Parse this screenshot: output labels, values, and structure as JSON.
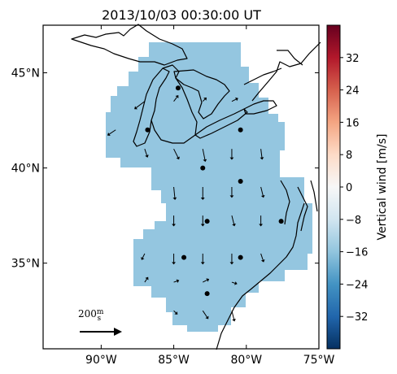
{
  "title": "2013/10/03 00:30:00 UT",
  "map": {
    "x_ticks": [
      {
        "lon": -90,
        "label": "90°W"
      },
      {
        "lon": -85,
        "label": "85°W"
      },
      {
        "lon": -80,
        "label": "80°W"
      },
      {
        "lon": -75,
        "label": "75°W"
      }
    ],
    "y_ticks": [
      {
        "lat": 45,
        "label": "45°N"
      },
      {
        "lat": 40,
        "label": "40°N"
      },
      {
        "lat": 35,
        "label": "35°N"
      }
    ],
    "reference_arrow_label": "200 m/s",
    "field_color": "#94c6e0"
  },
  "colorbar": {
    "label": "Vertical wind [m/s]",
    "range": [
      -40,
      40
    ],
    "ticks": [
      32,
      24,
      16,
      8,
      0,
      -8,
      -16,
      -24,
      -32
    ],
    "tick_labels": [
      "32",
      "24",
      "16",
      "8",
      "0",
      "−8",
      "−16",
      "−24",
      "−32"
    ],
    "colors_top_to_bottom": [
      "#67001f",
      "#b2182b",
      "#d6604d",
      "#f4a582",
      "#fddbc7",
      "#f7f7f7",
      "#d1e5f0",
      "#92c5de",
      "#4393c3",
      "#2166ac",
      "#053061"
    ]
  },
  "chart_data": {
    "type": "map",
    "title": "2013/10/03 00:30:00 UT",
    "xlim": [
      -94,
      -75
    ],
    "ylim": [
      30.5,
      47.5
    ],
    "stations": [
      {
        "lon": -86.8,
        "lat": 42.0
      },
      {
        "lon": -84.7,
        "lat": 44.2
      },
      {
        "lon": -80.4,
        "lat": 42.0
      },
      {
        "lon": -83.0,
        "lat": 40.0
      },
      {
        "lon": -80.4,
        "lat": 39.3
      },
      {
        "lon": -82.7,
        "lat": 37.2
      },
      {
        "lon": -77.6,
        "lat": 37.2
      },
      {
        "lon": -84.3,
        "lat": 35.3
      },
      {
        "lon": -80.4,
        "lat": 35.3
      },
      {
        "lon": -82.7,
        "lat": 33.4
      }
    ],
    "wind_vectors_m_per_s": [
      {
        "lon": -87.0,
        "lat": 43.5,
        "u": -40,
        "v": -30
      },
      {
        "lon": -85.0,
        "lat": 43.5,
        "u": 15,
        "v": 20
      },
      {
        "lon": -83.0,
        "lat": 43.5,
        "u": 10,
        "v": 10
      },
      {
        "lon": -81.0,
        "lat": 43.5,
        "u": 20,
        "v": 10
      },
      {
        "lon": -89.0,
        "lat": 42.0,
        "u": -30,
        "v": -20
      },
      {
        "lon": -87.0,
        "lat": 41.0,
        "u": 10,
        "v": -30
      },
      {
        "lon": -85.0,
        "lat": 41.0,
        "u": 20,
        "v": -40
      },
      {
        "lon": -83.0,
        "lat": 41.0,
        "u": 10,
        "v": -50
      },
      {
        "lon": -81.0,
        "lat": 41.0,
        "u": 0,
        "v": -40
      },
      {
        "lon": -79.0,
        "lat": 41.0,
        "u": 5,
        "v": -40
      },
      {
        "lon": -85.0,
        "lat": 39.0,
        "u": 5,
        "v": -50
      },
      {
        "lon": -83.0,
        "lat": 39.0,
        "u": 0,
        "v": -50
      },
      {
        "lon": -81.0,
        "lat": 39.0,
        "u": 0,
        "v": -40
      },
      {
        "lon": -79.0,
        "lat": 39.0,
        "u": 10,
        "v": -40
      },
      {
        "lon": -85.0,
        "lat": 37.5,
        "u": 0,
        "v": -40
      },
      {
        "lon": -83.0,
        "lat": 37.5,
        "u": 0,
        "v": -40
      },
      {
        "lon": -81.0,
        "lat": 37.5,
        "u": 10,
        "v": -40
      },
      {
        "lon": -79.0,
        "lat": 37.5,
        "u": 0,
        "v": -40
      },
      {
        "lon": -87.0,
        "lat": 35.5,
        "u": -10,
        "v": -20
      },
      {
        "lon": -85.0,
        "lat": 35.5,
        "u": 0,
        "v": -40
      },
      {
        "lon": -83.0,
        "lat": 35.5,
        "u": 0,
        "v": -40
      },
      {
        "lon": -81.0,
        "lat": 35.5,
        "u": 0,
        "v": -40
      },
      {
        "lon": -79.0,
        "lat": 35.5,
        "u": 10,
        "v": -30
      },
      {
        "lon": -87.0,
        "lat": 34.0,
        "u": 10,
        "v": 15
      },
      {
        "lon": -85.0,
        "lat": 34.0,
        "u": 15,
        "v": 5
      },
      {
        "lon": -83.0,
        "lat": 34.0,
        "u": 20,
        "v": 10
      },
      {
        "lon": -81.0,
        "lat": 34.0,
        "u": 15,
        "v": -5
      },
      {
        "lon": -85.0,
        "lat": 32.5,
        "u": 10,
        "v": -10
      },
      {
        "lon": -83.0,
        "lat": 32.5,
        "u": 20,
        "v": -30
      },
      {
        "lon": -81.0,
        "lat": 32.5,
        "u": 10,
        "v": -40
      }
    ],
    "reference_vector": {
      "u": 200,
      "v": 0
    }
  }
}
